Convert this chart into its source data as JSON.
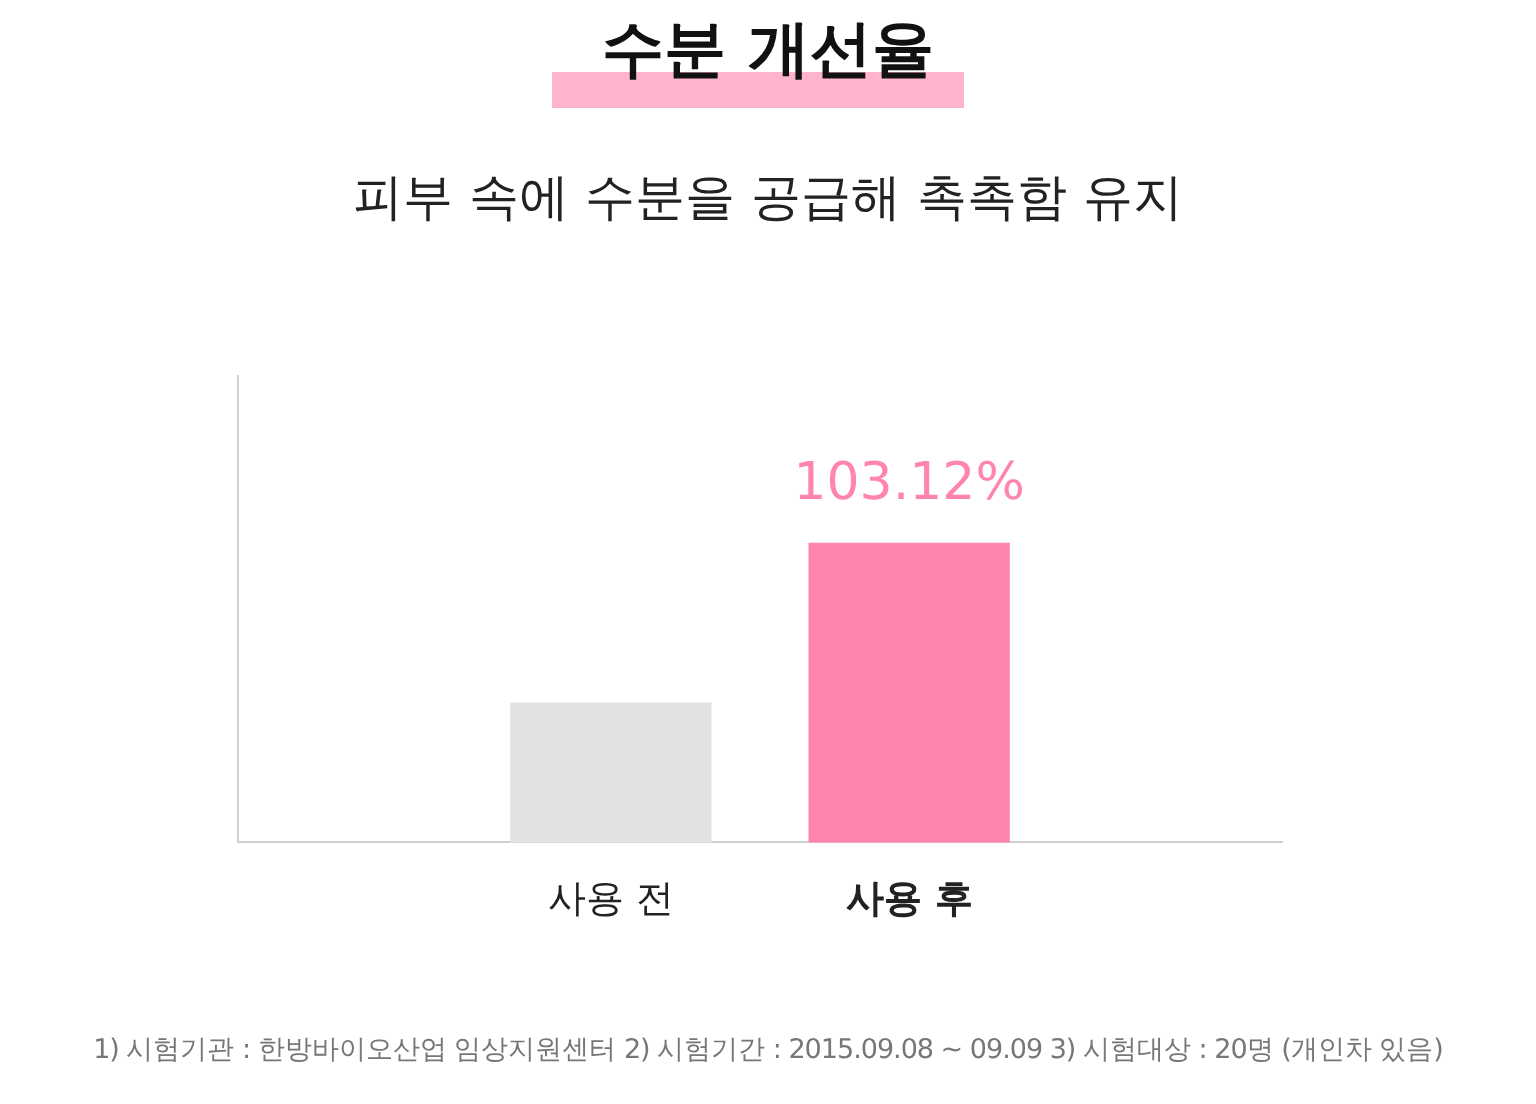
{
  "chart_data": {
    "type": "bar",
    "title": "수분 개선율",
    "subtitle": "피부 속에 수분을 공급해 촉촉함 유지",
    "categories": [
      "사용 전",
      "사용 후"
    ],
    "values": [
      48,
      103.12
    ],
    "colors": [
      "#e2e2e2",
      "#ff85ad"
    ],
    "value_labels": [
      null,
      "103.12%"
    ],
    "annotations": [
      "1) 시험기관 : 한방바이오산업 임상지원센터  2) 시험기간 : 2015.09.08 ~ 09.09  3) 시험대상 : 20명 (개인차 있음)"
    ],
    "grid": false,
    "legend": false
  }
}
